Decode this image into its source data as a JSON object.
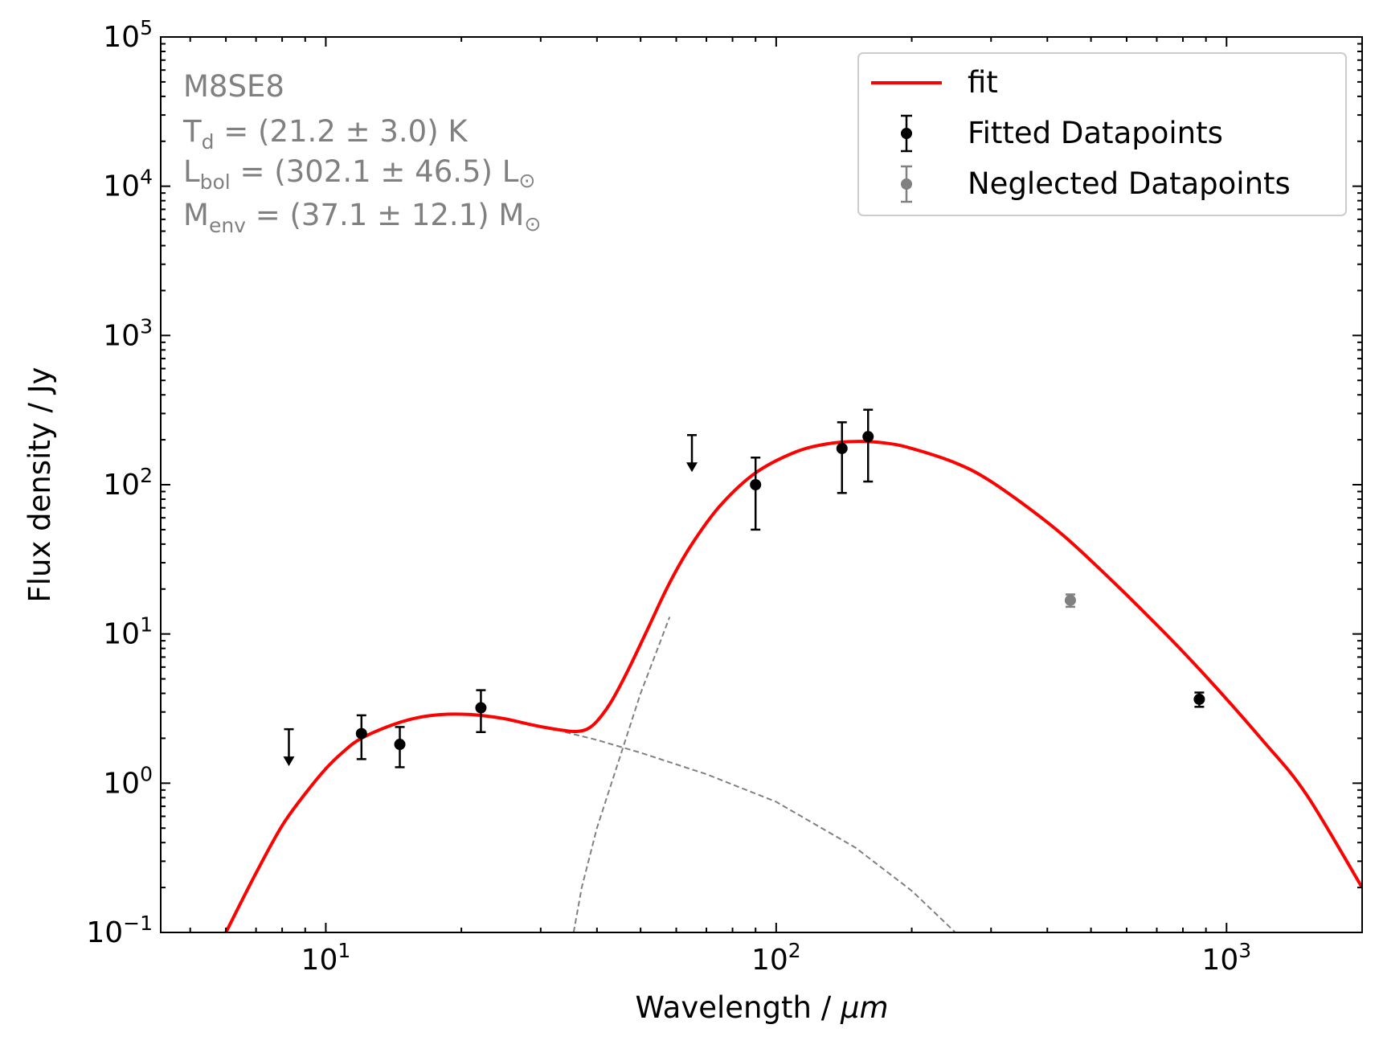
{
  "chart_data": {
    "type": "scatter",
    "title": "",
    "xlabel_main": "Wavelength / ",
    "xlabel_unit": "μm",
    "ylabel": "Flux density / Jy",
    "xscale": "log",
    "yscale": "log",
    "xlim": [
      4.3,
      2000
    ],
    "ylim": [
      0.1,
      100000
    ],
    "x_ticks": [
      {
        "value": 10,
        "base": "10",
        "exp": "1"
      },
      {
        "value": 100,
        "base": "10",
        "exp": "2"
      },
      {
        "value": 1000,
        "base": "10",
        "exp": "3"
      }
    ],
    "y_ticks": [
      {
        "value": 0.1,
        "base": "10",
        "exp": "−1"
      },
      {
        "value": 1,
        "base": "10",
        "exp": "0"
      },
      {
        "value": 10,
        "base": "10",
        "exp": "1"
      },
      {
        "value": 100,
        "base": "10",
        "exp": "2"
      },
      {
        "value": 1000,
        "base": "10",
        "exp": "3"
      },
      {
        "value": 10000,
        "base": "10",
        "exp": "4"
      },
      {
        "value": 100000,
        "base": "10",
        "exp": "5"
      }
    ],
    "annotation": {
      "source": "M8SE8",
      "td": {
        "sym": "T",
        "sub": "d",
        "text": " = (21.2 ± 3.0) K"
      },
      "lbol": {
        "sym": "L",
        "sub": "bol",
        "text": " = (302.1 ± 46.5) L",
        "unit_sym": "⊙"
      },
      "menv": {
        "sym": "M",
        "sub": "env",
        "text": " = (37.1 ± 12.1) M",
        "unit_sym": "⊙"
      }
    },
    "legend": {
      "position": "top-right",
      "fit": "fit",
      "fitted": "Fitted Datapoints",
      "neglected": "Neglected Datapoints"
    },
    "colors": {
      "fit": "#ff0000",
      "fitted": "#000000",
      "neglected": "#808080",
      "components": "#808080"
    },
    "fit_curve": {
      "x": [
        6.0,
        7.0,
        8.0,
        9.0,
        10.0,
        11.0,
        12.0,
        14.0,
        16.0,
        18.0,
        20.0,
        22.0,
        25.0,
        28.0,
        31.0,
        34.0,
        36.0,
        38.0,
        40.0,
        43.0,
        47.0,
        52.0,
        58.0,
        65.0,
        75.0,
        90.0,
        110.0,
        130.0,
        150.0,
        175.0,
        200.0,
        250.0,
        300.0,
        400.0,
        500.0,
        700.0,
        900.0,
        1200.0,
        1500.0,
        2000.0
      ],
      "y": [
        0.1,
        0.25,
        0.52,
        0.85,
        1.25,
        1.65,
        2.0,
        2.45,
        2.75,
        2.88,
        2.9,
        2.85,
        2.7,
        2.5,
        2.35,
        2.25,
        2.22,
        2.3,
        2.6,
        3.5,
        5.8,
        11.0,
        22.0,
        40.0,
        72.0,
        120.0,
        165.0,
        188.0,
        195.0,
        190.0,
        175.0,
        140.0,
        105.0,
        56.0,
        31.0,
        11.5,
        5.2,
        1.95,
        0.85,
        0.2
      ]
    },
    "component_warm": {
      "x": [
        34.0,
        40.0,
        50.0,
        70.0,
        100.0,
        150.0,
        200.0,
        250.0
      ],
      "y": [
        2.2,
        1.95,
        1.6,
        1.15,
        0.75,
        0.37,
        0.19,
        0.1
      ]
    },
    "component_cold": {
      "x": [
        35.5,
        37.0,
        40.0,
        45.0,
        50.0,
        55.0,
        58.0
      ],
      "y": [
        0.1,
        0.2,
        0.5,
        1.5,
        4.0,
        8.5,
        13.0
      ]
    },
    "fitted_points": [
      {
        "x": 12.0,
        "y": 2.15,
        "ylo": 1.45,
        "yhi": 2.85
      },
      {
        "x": 14.6,
        "y": 1.82,
        "ylo": 1.28,
        "yhi": 2.38
      },
      {
        "x": 22.1,
        "y": 3.2,
        "ylo": 2.2,
        "yhi": 4.2
      },
      {
        "x": 90.0,
        "y": 100.0,
        "ylo": 50.0,
        "yhi": 152.0
      },
      {
        "x": 140.0,
        "y": 175.0,
        "ylo": 88.0,
        "yhi": 262.0
      },
      {
        "x": 160.0,
        "y": 210.0,
        "ylo": 105.0,
        "yhi": 318.0
      },
      {
        "x": 870.0,
        "y": 3.65,
        "ylo": 3.25,
        "yhi": 4.05
      }
    ],
    "neglected_points": [
      {
        "x": 450.0,
        "y": 16.8,
        "ylo": 15.2,
        "yhi": 18.4
      }
    ],
    "upper_limits": [
      {
        "x": 8.28,
        "y": 2.3
      },
      {
        "x": 65.0,
        "y": 215.0
      }
    ]
  }
}
